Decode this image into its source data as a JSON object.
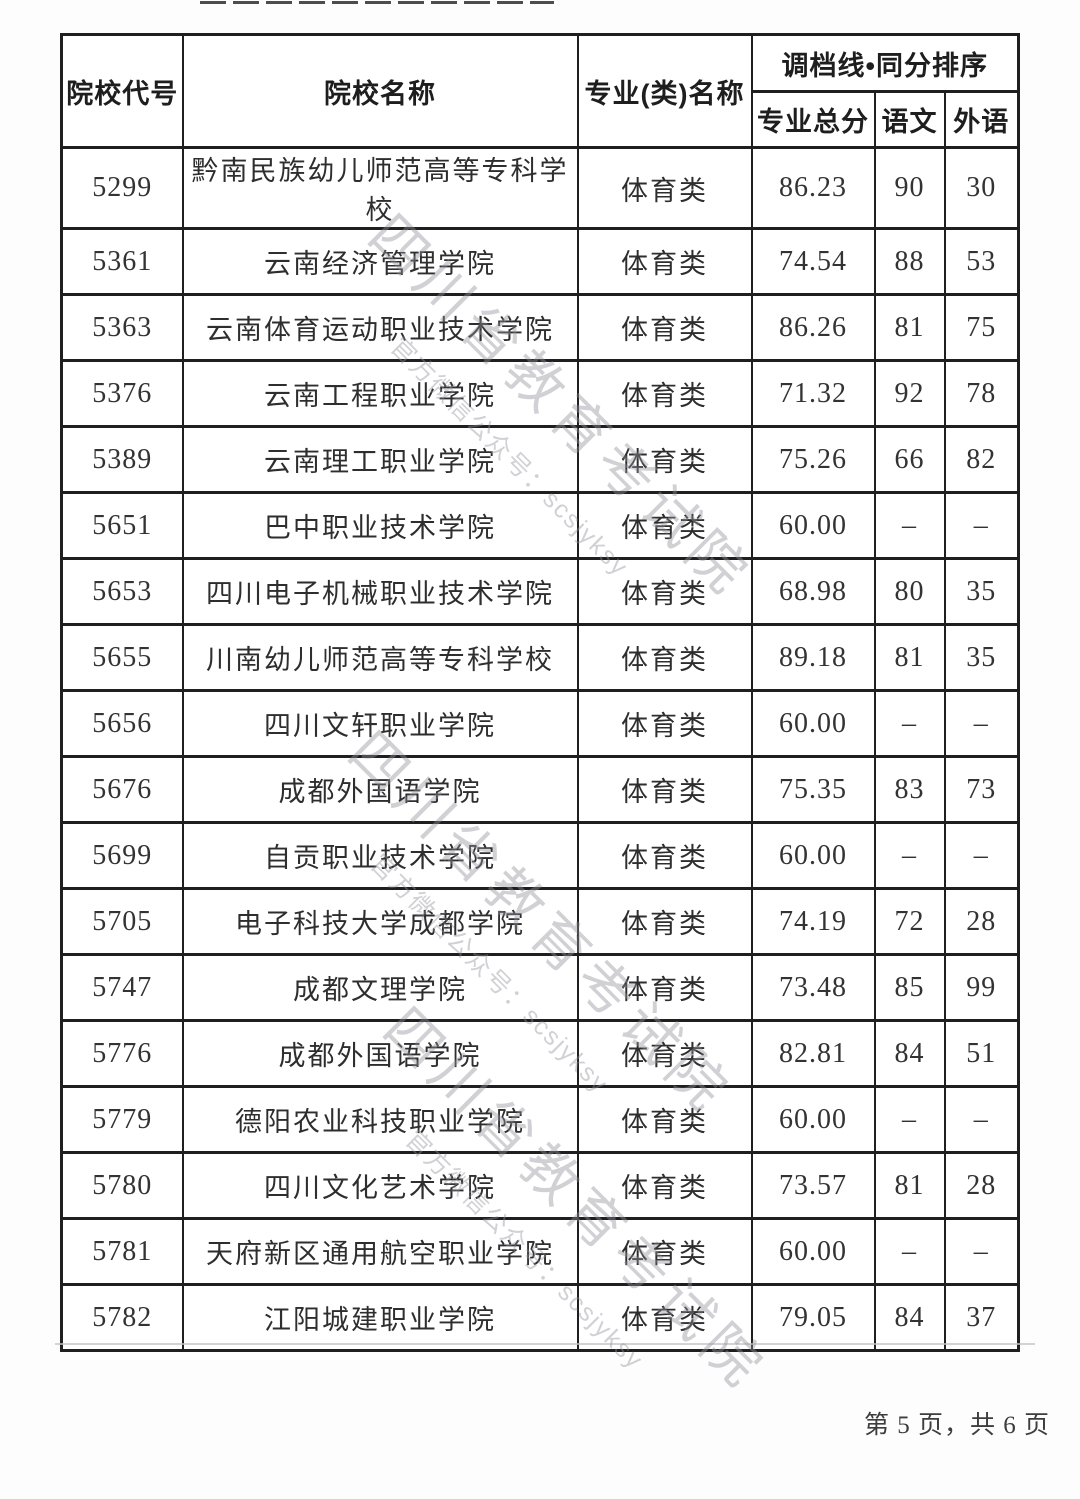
{
  "document": {
    "footer": {
      "page_indicator": "第 5 页，共 6 页"
    },
    "watermark": {
      "title": "四川省教育考试院",
      "subtitle": "官方微信公众号：scsjyksy"
    }
  },
  "table": {
    "headers": {
      "col_code": "院校代号",
      "col_name": "院校名称",
      "col_major": "专业(类)名称",
      "col_group": "调档线•同分排序",
      "col_total": "专业总分",
      "col_chinese": "语文",
      "col_foreign": "外语"
    },
    "rows": [
      {
        "code": "5299",
        "name": "黔南民族幼儿师范高等专科学校",
        "major": "体育类",
        "total": "86.23",
        "chinese": "90",
        "foreign": "30"
      },
      {
        "code": "5361",
        "name": "云南经济管理学院",
        "major": "体育类",
        "total": "74.54",
        "chinese": "88",
        "foreign": "53"
      },
      {
        "code": "5363",
        "name": "云南体育运动职业技术学院",
        "major": "体育类",
        "total": "86.26",
        "chinese": "81",
        "foreign": "75"
      },
      {
        "code": "5376",
        "name": "云南工程职业学院",
        "major": "体育类",
        "total": "71.32",
        "chinese": "92",
        "foreign": "78"
      },
      {
        "code": "5389",
        "name": "云南理工职业学院",
        "major": "体育类",
        "total": "75.26",
        "chinese": "66",
        "foreign": "82"
      },
      {
        "code": "5651",
        "name": "巴中职业技术学院",
        "major": "体育类",
        "total": "60.00",
        "chinese": "–",
        "foreign": "–"
      },
      {
        "code": "5653",
        "name": "四川电子机械职业技术学院",
        "major": "体育类",
        "total": "68.98",
        "chinese": "80",
        "foreign": "35"
      },
      {
        "code": "5655",
        "name": "川南幼儿师范高等专科学校",
        "major": "体育类",
        "total": "89.18",
        "chinese": "81",
        "foreign": "35"
      },
      {
        "code": "5656",
        "name": "四川文轩职业学院",
        "major": "体育类",
        "total": "60.00",
        "chinese": "–",
        "foreign": "–"
      },
      {
        "code": "5676",
        "name": "成都外国语学院",
        "major": "体育类",
        "total": "75.35",
        "chinese": "83",
        "foreign": "73"
      },
      {
        "code": "5699",
        "name": "自贡职业技术学院",
        "major": "体育类",
        "total": "60.00",
        "chinese": "–",
        "foreign": "–"
      },
      {
        "code": "5705",
        "name": "电子科技大学成都学院",
        "major": "体育类",
        "total": "74.19",
        "chinese": "72",
        "foreign": "28"
      },
      {
        "code": "5747",
        "name": "成都文理学院",
        "major": "体育类",
        "total": "73.48",
        "chinese": "85",
        "foreign": "99"
      },
      {
        "code": "5776",
        "name": "成都外国语学院",
        "major": "体育类",
        "total": "82.81",
        "chinese": "84",
        "foreign": "51"
      },
      {
        "code": "5779",
        "name": "德阳农业科技职业学院",
        "major": "体育类",
        "total": "60.00",
        "chinese": "–",
        "foreign": "–"
      },
      {
        "code": "5780",
        "name": "四川文化艺术学院",
        "major": "体育类",
        "total": "73.57",
        "chinese": "81",
        "foreign": "28"
      },
      {
        "code": "5781",
        "name": "天府新区通用航空职业学院",
        "major": "体育类",
        "total": "60.00",
        "chinese": "–",
        "foreign": "–"
      },
      {
        "code": "5782",
        "name": "江阳城建职业学院",
        "major": "体育类",
        "total": "79.05",
        "chinese": "84",
        "foreign": "37"
      }
    ]
  },
  "colors": {
    "border": "#1f1f1f",
    "text": "#2b2b2b",
    "watermark": "#94949b",
    "page_background": "#fdfdfd"
  }
}
